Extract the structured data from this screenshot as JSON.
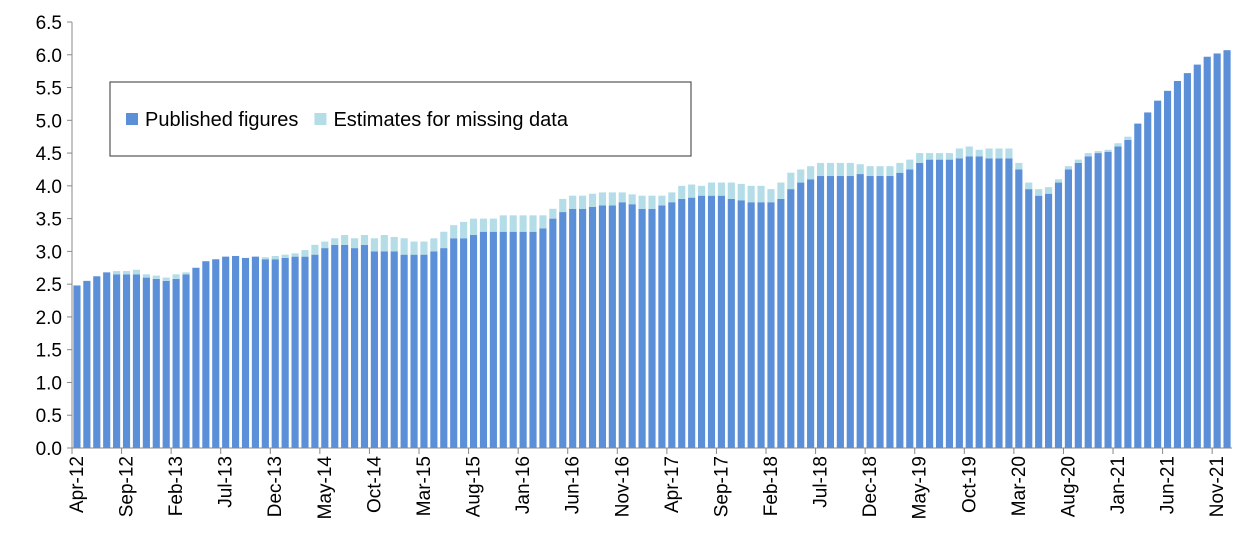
{
  "chart_data": {
    "type": "stacked_bar",
    "categories": [
      "Apr-12",
      null,
      null,
      null,
      null,
      "Sep-12",
      null,
      null,
      null,
      null,
      "Feb-13",
      null,
      null,
      null,
      null,
      "Jul-13",
      null,
      null,
      null,
      null,
      "Dec-13",
      null,
      null,
      null,
      null,
      "May-14",
      null,
      null,
      null,
      null,
      "Oct-14",
      null,
      null,
      null,
      null,
      "Mar-15",
      null,
      null,
      null,
      null,
      "Aug-15",
      null,
      null,
      null,
      null,
      "Jan-16",
      null,
      null,
      null,
      null,
      "Jun-16",
      null,
      null,
      null,
      null,
      "Nov-16",
      null,
      null,
      null,
      null,
      "Apr-17",
      null,
      null,
      null,
      null,
      "Sep-17",
      null,
      null,
      null,
      null,
      "Feb-18",
      null,
      null,
      null,
      null,
      "Jul-18",
      null,
      null,
      null,
      null,
      "Dec-18",
      null,
      null,
      null,
      null,
      "May-19",
      null,
      null,
      null,
      null,
      "Oct-19",
      null,
      null,
      null,
      null,
      "Mar-20",
      null,
      null,
      null,
      null,
      "Aug-20",
      null,
      null,
      null,
      null,
      "Jan-21",
      null,
      null,
      null,
      null,
      "Jun-21",
      null,
      null,
      null,
      null,
      "Nov-21",
      null
    ],
    "series": [
      {
        "name": "Published figures",
        "color": "#5b8fd8",
        "values": [
          2.48,
          2.55,
          2.62,
          2.68,
          2.65,
          2.65,
          2.65,
          2.6,
          2.58,
          2.55,
          2.58,
          2.65,
          2.75,
          2.85,
          2.88,
          2.92,
          2.93,
          2.9,
          2.92,
          2.88,
          2.88,
          2.9,
          2.92,
          2.92,
          2.95,
          3.05,
          3.1,
          3.1,
          3.05,
          3.1,
          3.0,
          3.0,
          3.0,
          2.95,
          2.95,
          2.95,
          3.0,
          3.05,
          3.2,
          3.2,
          3.25,
          3.3,
          3.3,
          3.3,
          3.3,
          3.3,
          3.3,
          3.35,
          3.5,
          3.6,
          3.65,
          3.65,
          3.68,
          3.7,
          3.7,
          3.75,
          3.72,
          3.65,
          3.65,
          3.7,
          3.75,
          3.8,
          3.82,
          3.85,
          3.85,
          3.85,
          3.8,
          3.78,
          3.75,
          3.75,
          3.75,
          3.8,
          3.95,
          4.05,
          4.1,
          4.15,
          4.15,
          4.15,
          4.15,
          4.18,
          4.15,
          4.15,
          4.15,
          4.2,
          4.25,
          4.35,
          4.4,
          4.4,
          4.4,
          4.42,
          4.45,
          4.45,
          4.42,
          4.42,
          4.42,
          4.25,
          3.95,
          3.85,
          3.88,
          4.05,
          4.25,
          4.35,
          4.45,
          4.5,
          4.52,
          4.6,
          4.7,
          4.95,
          5.12,
          5.3,
          5.45,
          5.6,
          5.72,
          5.85,
          5.97,
          6.02,
          6.07
        ]
      },
      {
        "name": "Estimates for missing data",
        "color": "#b4dde8",
        "values": [
          0,
          0,
          0,
          0,
          0.05,
          0.05,
          0.07,
          0.05,
          0.05,
          0.05,
          0.07,
          0.03,
          0,
          0,
          0,
          0,
          0,
          0,
          0,
          0.03,
          0.05,
          0.05,
          0.05,
          0.1,
          0.15,
          0.1,
          0.1,
          0.15,
          0.15,
          0.15,
          0.2,
          0.25,
          0.22,
          0.25,
          0.2,
          0.2,
          0.2,
          0.25,
          0.2,
          0.25,
          0.25,
          0.2,
          0.2,
          0.25,
          0.25,
          0.25,
          0.25,
          0.2,
          0.15,
          0.2,
          0.2,
          0.2,
          0.2,
          0.2,
          0.2,
          0.15,
          0.15,
          0.2,
          0.2,
          0.15,
          0.15,
          0.2,
          0.2,
          0.15,
          0.2,
          0.2,
          0.25,
          0.25,
          0.25,
          0.25,
          0.2,
          0.25,
          0.25,
          0.2,
          0.2,
          0.2,
          0.2,
          0.2,
          0.2,
          0.15,
          0.15,
          0.15,
          0.15,
          0.15,
          0.15,
          0.15,
          0.1,
          0.1,
          0.1,
          0.15,
          0.15,
          0.1,
          0.15,
          0.15,
          0.15,
          0.1,
          0.1,
          0.1,
          0.1,
          0.05,
          0.05,
          0.05,
          0.05,
          0.03,
          0.03,
          0.05,
          0.05,
          0,
          0,
          0,
          0,
          0,
          0,
          0,
          0,
          0,
          0
        ]
      }
    ],
    "ylim": [
      0,
      6.5
    ],
    "yticks": [
      {
        "value": 0,
        "label": "0.0"
      },
      0.5,
      {
        "value": 1,
        "label": "1.0"
      },
      1.5,
      {
        "value": 2,
        "label": "2.0"
      },
      2.5,
      {
        "value": 3,
        "label": "3.0"
      },
      3.5,
      {
        "value": 4,
        "label": "4.0"
      },
      4.5,
      {
        "value": 5,
        "label": "5.0"
      },
      5.5,
      {
        "value": 6,
        "label": "6.0"
      },
      6.5
    ],
    "grid": false,
    "legend": "top-left"
  }
}
